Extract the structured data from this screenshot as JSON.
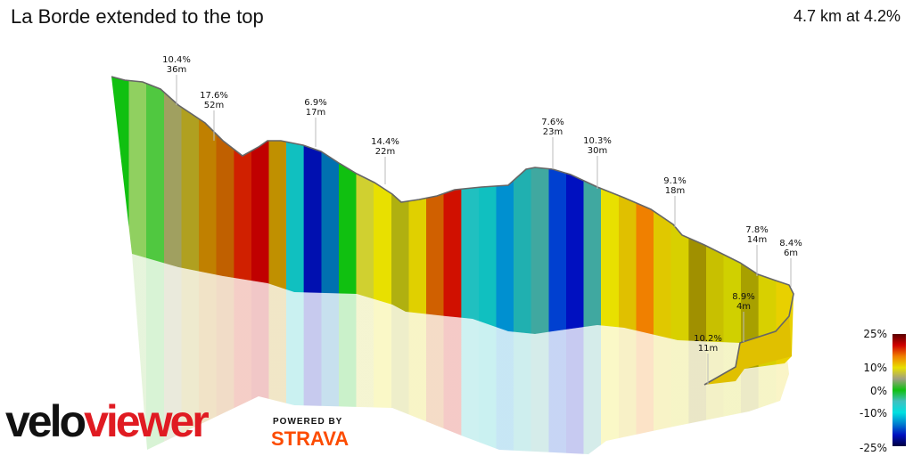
{
  "header": {
    "title": "La Borde extended to the top",
    "summary": "4.7 km at 4.2%"
  },
  "branding": {
    "logo_part1": "velo",
    "logo_part2": "viewer",
    "powered_by": "POWERED BY",
    "strava": "STRAVA"
  },
  "chart_data": {
    "type": "area",
    "title": "La Borde extended to the top",
    "distance_km": 4.7,
    "avg_gradient_pct": 4.2,
    "annotations": [
      {
        "grade": "10.4%",
        "length": "36m"
      },
      {
        "grade": "17.6%",
        "length": "52m"
      },
      {
        "grade": "6.9%",
        "length": "17m"
      },
      {
        "grade": "14.4%",
        "length": "22m"
      },
      {
        "grade": "7.6%",
        "length": "23m"
      },
      {
        "grade": "10.3%",
        "length": "30m"
      },
      {
        "grade": "9.1%",
        "length": "18m"
      },
      {
        "grade": "7.8%",
        "length": "14m"
      },
      {
        "grade": "8.4%",
        "length": "6m"
      },
      {
        "grade": "8.9%",
        "length": "4m"
      },
      {
        "grade": "10.2%",
        "length": "11m"
      }
    ],
    "legend": {
      "labels": [
        "25%",
        "10%",
        "0%",
        "-10%",
        "-25%"
      ],
      "colors": [
        "#5a0000",
        "#d00000",
        "#f08000",
        "#e8e000",
        "#a0a080",
        "#10c010",
        "#40c0c0",
        "#00e0e0",
        "#0080d0",
        "#0010c0",
        "#000040"
      ]
    },
    "segment_colors": [
      "#10c010",
      "#90d060",
      "#50c840",
      "#a0a060",
      "#b0a020",
      "#c08000",
      "#c06000",
      "#d02000",
      "#c00000",
      "#c09000",
      "#10c0c0",
      "#0010b0",
      "#0070b0",
      "#10c010",
      "#d0d030",
      "#e8e000",
      "#b0b010",
      "#e0d000",
      "#d06000",
      "#d01000",
      "#20c0c0",
      "#10c0c0",
      "#0090d0",
      "#20b0b0",
      "#40a8a0",
      "#0040d0",
      "#0010c0",
      "#40a8a0",
      "#e8e000",
      "#e0c000",
      "#f08000",
      "#e0c800",
      "#d8d000",
      "#a09000",
      "#c8c000",
      "#d0d000",
      "#a8a000",
      "#d8d000",
      "#e8d000"
    ]
  }
}
